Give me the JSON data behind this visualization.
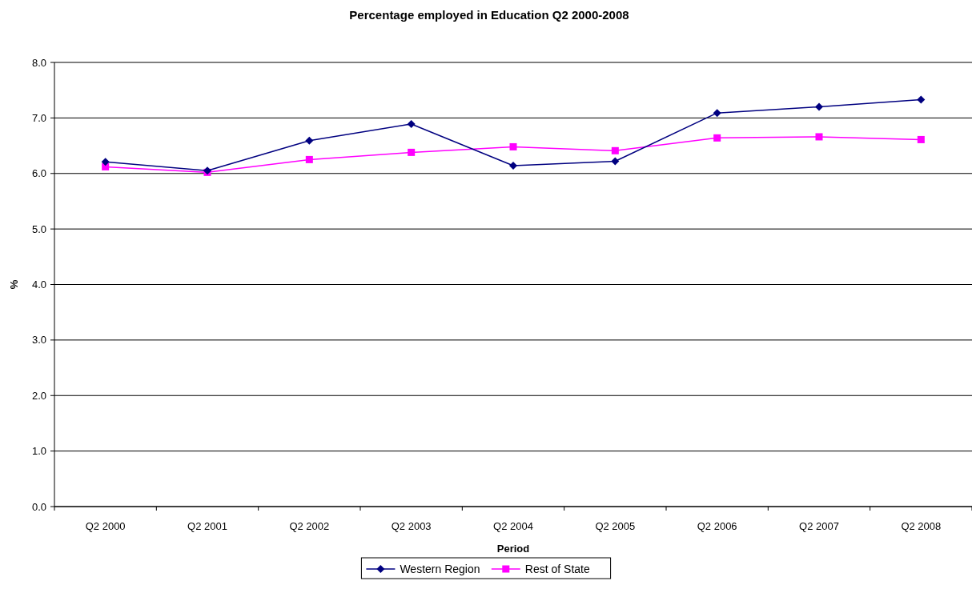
{
  "chart_data": {
    "type": "line",
    "title": "Percentage employed in Education Q2 2000-2008",
    "xlabel": "Period",
    "ylabel": "%",
    "categories": [
      "Q2 2000",
      "Q2 2001",
      "Q2 2002",
      "Q2 2003",
      "Q2 2004",
      "Q2 2005",
      "Q2 2006",
      "Q2 2007",
      "Q2 2008"
    ],
    "series": [
      {
        "name": "Western Region",
        "color": "#000080",
        "marker": "diamond",
        "values": [
          6.21,
          6.05,
          6.59,
          6.89,
          6.14,
          6.22,
          7.09,
          7.2,
          7.33
        ]
      },
      {
        "name": "Rest of State",
        "color": "#ff00ff",
        "marker": "square",
        "values": [
          6.12,
          6.02,
          6.25,
          6.38,
          6.48,
          6.41,
          6.64,
          6.66,
          6.61
        ]
      }
    ],
    "ylim": [
      0,
      8
    ],
    "yticks": [
      {
        "value": 0,
        "label": "0.0"
      },
      {
        "value": 1,
        "label": "1.0"
      },
      {
        "value": 2,
        "label": "2.0"
      },
      {
        "value": 3,
        "label": "3.0"
      },
      {
        "value": 4,
        "label": "4.0"
      },
      {
        "value": 5,
        "label": "5.0"
      },
      {
        "value": 6,
        "label": "6.0"
      },
      {
        "value": 7,
        "label": "7.0"
      },
      {
        "value": 8,
        "label": "8.0"
      }
    ],
    "grid": "y",
    "legend": "bottom"
  }
}
